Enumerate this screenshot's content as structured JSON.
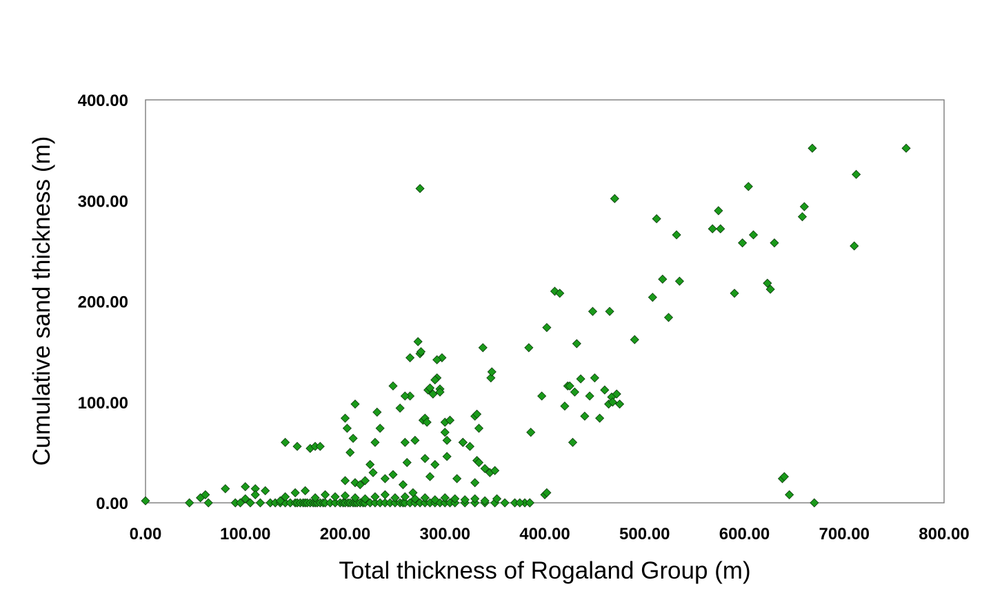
{
  "chart_data": {
    "type": "scatter",
    "title": "",
    "xlabel": "Total thickness of Rogaland Group (m)",
    "ylabel": "Cumulative sand thickness (m)",
    "xlim": [
      0,
      800
    ],
    "ylim": [
      0,
      400
    ],
    "x_ticks": [
      "0.00",
      "100.00",
      "200.00",
      "300.00",
      "400.00",
      "500.00",
      "600.00",
      "700.00",
      "800.00"
    ],
    "y_ticks": [
      "0.00",
      "100.00",
      "200.00",
      "300.00",
      "400.00"
    ],
    "grid": false,
    "legend": "none",
    "marker": "diamond",
    "marker_color": "#1a9a1a",
    "series": [
      {
        "x": [
          0,
          44,
          55,
          60,
          80,
          90,
          95,
          100,
          105,
          110,
          115,
          120,
          125,
          130,
          135,
          140,
          145,
          150,
          152,
          155,
          158,
          160,
          162,
          165,
          168,
          170,
          172,
          175,
          178,
          180,
          185,
          190,
          195,
          198,
          200,
          203,
          205,
          208,
          210,
          212,
          215,
          218,
          220,
          225,
          230,
          235,
          240,
          245,
          250,
          255,
          258,
          260,
          265,
          270,
          275,
          280,
          285,
          290,
          295,
          300,
          305,
          310,
          320,
          330,
          340,
          350,
          360,
          370,
          380,
          385,
          63,
          100,
          110,
          135,
          140,
          150,
          160,
          170,
          180,
          190,
          200,
          210,
          220,
          230,
          240,
          250,
          260,
          270,
          280,
          290,
          300,
          310,
          320,
          330,
          340,
          352,
          375,
          385,
          400,
          140,
          152,
          165,
          170,
          175,
          200,
          202,
          205,
          208,
          210,
          215,
          220,
          225,
          230,
          235,
          240,
          248,
          255,
          258,
          260,
          262,
          265,
          268,
          270,
          275,
          278,
          280,
          283,
          285,
          288,
          290,
          292,
          295,
          297,
          300,
          302,
          305,
          312,
          318,
          325,
          330,
          332,
          334,
          340,
          345,
          350,
          200,
          210,
          228,
          232,
          248,
          260,
          265,
          273,
          276,
          280,
          282,
          285,
          290,
          292,
          295,
          300,
          302,
          318,
          330,
          332,
          334,
          338,
          346,
          347,
          384,
          386,
          397,
          402,
          410,
          420,
          423,
          428,
          430,
          432,
          436,
          440,
          445,
          448,
          455,
          460,
          464,
          467,
          470,
          472,
          475,
          275,
          402,
          415,
          425,
          450,
          465,
          468,
          490,
          508,
          512,
          518,
          524,
          532,
          535,
          568,
          574,
          576,
          590,
          598,
          604,
          609,
          623,
          626,
          630,
          638,
          640,
          645,
          658,
          660,
          668,
          670,
          710,
          712,
          762
        ],
        "y": [
          2,
          0,
          5,
          8,
          14,
          0,
          0,
          16,
          0,
          14,
          0,
          12,
          0,
          0,
          0,
          0,
          0,
          0,
          0,
          0,
          0,
          0,
          0,
          0,
          0,
          0,
          0,
          0,
          0,
          0,
          0,
          0,
          0,
          0,
          0,
          0,
          0,
          0,
          0,
          0,
          0,
          0,
          0,
          0,
          0,
          0,
          0,
          0,
          0,
          0,
          0,
          0,
          0,
          0,
          0,
          0,
          0,
          0,
          0,
          0,
          0,
          0,
          0,
          0,
          0,
          0,
          0,
          0,
          0,
          0,
          0,
          4,
          8,
          2,
          6,
          10,
          12,
          5,
          8,
          6,
          7,
          5,
          4,
          6,
          8,
          5,
          6,
          4,
          5,
          3,
          5,
          4,
          3,
          4,
          2,
          4,
          0,
          0,
          8,
          60,
          56,
          54,
          56,
          56,
          84,
          74,
          50,
          64,
          20,
          18,
          22,
          38,
          60,
          74,
          24,
          116,
          94,
          18,
          60,
          40,
          106,
          10,
          62,
          148,
          82,
          84,
          112,
          26,
          108,
          38,
          124,
          113,
          144,
          80,
          62,
          82,
          24,
          60,
          56,
          20,
          42,
          74,
          34,
          30,
          32,
          22,
          98,
          30,
          90,
          28,
          106,
          144,
          160,
          150,
          44,
          80,
          114,
          122,
          142,
          110,
          70,
          46,
          60,
          86,
          88,
          40,
          154,
          124,
          130,
          154,
          70,
          106,
          174,
          210,
          96,
          116,
          60,
          110,
          158,
          123,
          86,
          106,
          190,
          84,
          112,
          98,
          105,
          302,
          108,
          98,
          312,
          10,
          208,
          116,
          124,
          190,
          100,
          162,
          204,
          282,
          222,
          184,
          266,
          220,
          272,
          290,
          272,
          208,
          258,
          314,
          266,
          218,
          212,
          258,
          24,
          26,
          8,
          284,
          294,
          352,
          0,
          255,
          326,
          352
        ]
      }
    ]
  }
}
